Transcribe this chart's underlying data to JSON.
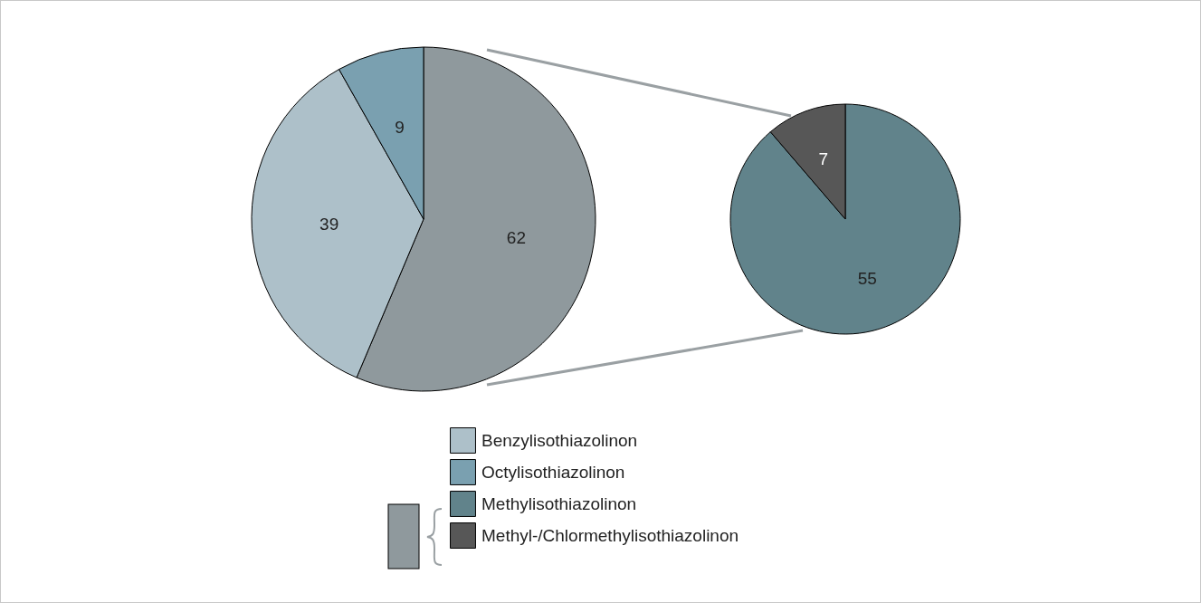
{
  "chart_data": [
    {
      "type": "pie",
      "categories": [
        null,
        "Benzylisothiazolinon",
        "Octylisothiazolinon"
      ],
      "values": [
        62,
        39,
        9
      ],
      "colors": [
        "#8f999d",
        "#adc0c9",
        "#7aa0b0"
      ],
      "data_labels": true,
      "legend": "bottom"
    },
    {
      "type": "pie",
      "categories": [
        "Methylisothiazolinon",
        "Methyl-/Chlormethylisothiazolinon"
      ],
      "values": [
        55,
        7
      ],
      "colors": [
        "#61838b",
        "#575757"
      ],
      "data_labels": true,
      "legend": "bottom"
    }
  ]
}
